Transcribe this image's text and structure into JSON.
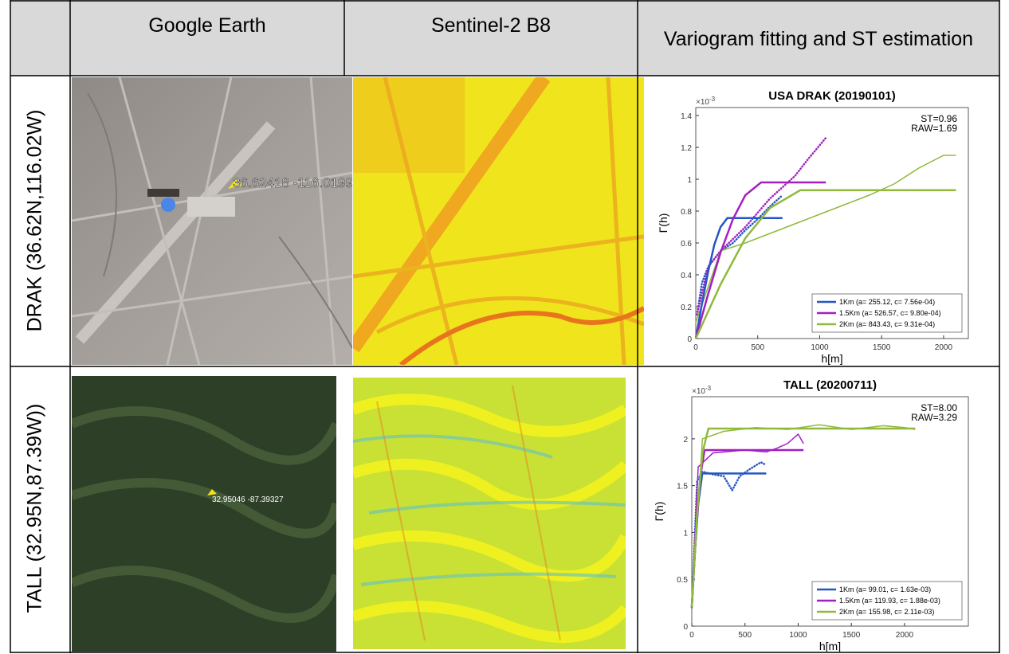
{
  "header": {
    "cells": [
      "Google Earth",
      "Sentinel-2 B8",
      "Variogram fitting and ST estimation"
    ]
  },
  "rows": [
    {
      "label": "DRAK (36.62N,116.02W)",
      "pin_label": "36.62418 -116.0199",
      "chart": {
        "type": "line",
        "title": "USA DRAK (20190101)",
        "exponent_base": "×10",
        "exponent": "-3",
        "st": "ST=0.96",
        "raw": "RAW=1.69",
        "ylabel": "Γ(h)",
        "xlabel": "h[m]",
        "xlim": [
          0,
          2200
        ],
        "ylim": [
          0,
          1.45
        ],
        "xticks": [
          0,
          500,
          1000,
          1500,
          2000
        ],
        "yticks": [
          0,
          0.2,
          0.4,
          0.6,
          0.8,
          1,
          1.2,
          1.4
        ],
        "series": [
          {
            "name": "1Km (a= 255.12, c= 7.56e-04)",
            "color": "#2456c4",
            "x": [
              0,
              50,
              100,
              150,
              200,
              255,
              700
            ],
            "values": [
              0,
              0.22,
              0.42,
              0.59,
              0.7,
              0.756,
              0.756
            ]
          },
          {
            "name": "1.5Km (a= 526.57, c= 9.80e-04)",
            "color": "#a31fc2",
            "x": [
              0,
              100,
              200,
              300,
              400,
              527,
              1050
            ],
            "values": [
              0,
              0.28,
              0.54,
              0.75,
              0.9,
              0.98,
              0.98
            ]
          },
          {
            "name": "2Km (a= 843.43, c= 9.31e-04)",
            "color": "#8fba3c",
            "x": [
              0,
              200,
              400,
              600,
              843,
              2100
            ],
            "values": [
              0,
              0.34,
              0.63,
              0.82,
              0.931,
              0.931
            ]
          }
        ],
        "empirical": [
          {
            "color": "#2456c4",
            "style": "dotted",
            "x": [
              10,
              50,
              100,
              200,
              300,
              400,
              500,
              600,
              700
            ],
            "values": [
              0.15,
              0.35,
              0.45,
              0.55,
              0.6,
              0.68,
              0.75,
              0.83,
              0.9
            ]
          },
          {
            "color": "#a31fc2",
            "style": "dotted",
            "x": [
              10,
              100,
              200,
              400,
              600,
              800,
              900,
              1050
            ],
            "values": [
              0.15,
              0.45,
              0.55,
              0.7,
              0.88,
              1.02,
              1.12,
              1.26
            ]
          },
          {
            "color": "#8fba3c",
            "style": "solid",
            "x": [
              0,
              200,
              400,
              600,
              800,
              1000,
              1200,
              1400,
              1600,
              1800,
              2000,
              2100
            ],
            "values": [
              0.1,
              0.55,
              0.6,
              0.66,
              0.72,
              0.78,
              0.84,
              0.9,
              0.97,
              1.07,
              1.15,
              1.15
            ]
          }
        ]
      }
    },
    {
      "label": "TALL (32.95N,87.39W))",
      "pin_label": "32.95046 -87.39327",
      "chart": {
        "type": "line",
        "title": "TALL (20200711)",
        "exponent_base": "×10",
        "exponent": "-3",
        "st": "ST=8.00",
        "raw": "RAW=3.29",
        "ylabel": "Γ(h)",
        "xlabel": "h[m]",
        "xlim": [
          0,
          2600
        ],
        "ylim": [
          0,
          2.45
        ],
        "xticks": [
          0,
          500,
          1000,
          1500,
          2000
        ],
        "yticks": [
          0,
          0.5,
          1,
          1.5,
          2
        ],
        "series": [
          {
            "name": "1Km (a= 99.01, c= 1.63e-03)",
            "color": "#2456c4",
            "x": [
              0,
              30,
              60,
              99,
              700
            ],
            "values": [
              0.2,
              0.8,
              1.3,
              1.63,
              1.63
            ]
          },
          {
            "name": "1.5Km (a= 119.93, c= 1.88e-03)",
            "color": "#a31fc2",
            "x": [
              0,
              40,
              80,
              120,
              1050
            ],
            "values": [
              0.2,
              1.0,
              1.6,
              1.88,
              1.88
            ]
          },
          {
            "name": "2Km (a= 155.98, c= 2.11e-03)",
            "color": "#8fba3c",
            "x": [
              0,
              50,
              100,
              156,
              2100
            ],
            "values": [
              0.2,
              1.2,
              1.85,
              2.11,
              2.11
            ]
          }
        ],
        "empirical": [
          {
            "color": "#2456c4",
            "style": "dotted",
            "x": [
              0,
              50,
              100,
              200,
              300,
              380,
              450,
              550,
              650,
              700
            ],
            "values": [
              0.2,
              1.55,
              1.65,
              1.62,
              1.6,
              1.45,
              1.6,
              1.68,
              1.75,
              1.72
            ]
          },
          {
            "color": "#a31fc2",
            "style": "solid",
            "x": [
              0,
              60,
              200,
              500,
              700,
              800,
              900,
              1000,
              1050
            ],
            "values": [
              0.2,
              1.7,
              1.85,
              1.88,
              1.86,
              1.9,
              1.95,
              2.05,
              1.95
            ]
          },
          {
            "color": "#8fba3c",
            "style": "solid",
            "x": [
              0,
              100,
              300,
              600,
              900,
              1200,
              1500,
              1800,
              2000,
              2100
            ],
            "values": [
              0.2,
              2.0,
              2.08,
              2.12,
              2.1,
              2.15,
              2.1,
              2.14,
              2.12,
              2.1
            ]
          }
        ]
      }
    }
  ]
}
